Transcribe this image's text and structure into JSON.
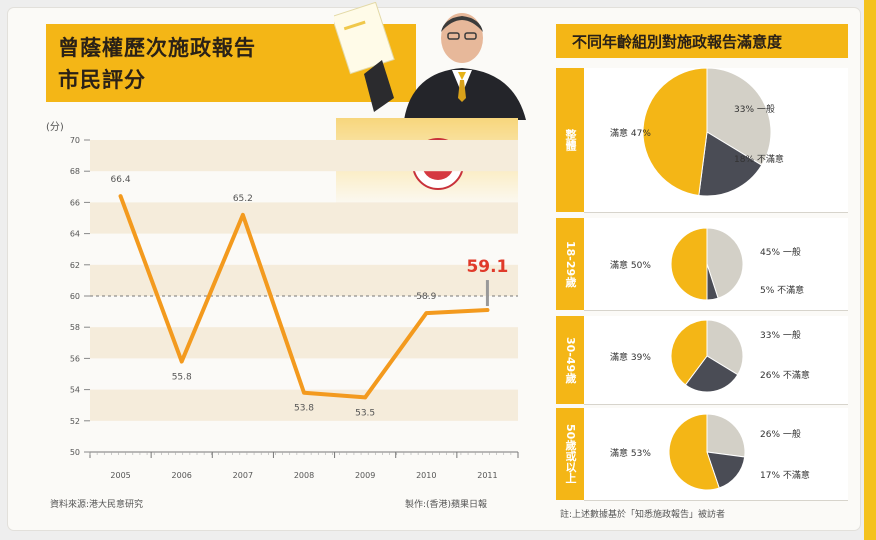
{
  "left_title": {
    "line1": "曾蔭權歷次施政報告",
    "line2": "市民評分"
  },
  "unit_label": "(分)",
  "source_text": "資料來源:港大民意研究",
  "credit_text": "製作:(香港)蘋果日報",
  "chart_data": [
    {
      "type": "line",
      "title": "曾蔭權歷次施政報告市民評分",
      "ylabel": "分",
      "xlabel": "",
      "ylim": [
        50,
        70
      ],
      "yticks": [
        50,
        52,
        54,
        56,
        58,
        60,
        62,
        64,
        66,
        68,
        70
      ],
      "grid": true,
      "reference_line": 60,
      "x": [
        "2005",
        "2006",
        "2007",
        "2008",
        "2009",
        "2010",
        "2011"
      ],
      "series": [
        {
          "values": [
            66.4,
            55.8,
            65.2,
            53.8,
            53.5,
            58.9,
            59.1
          ]
        }
      ],
      "highlight_label": "59.1",
      "colors": {
        "line": "#f39a1e",
        "highlight": "#e03a2a"
      }
    },
    {
      "type": "pie",
      "title": "不同年齡組別對施政報告滿意度",
      "groups": [
        {
          "label": "整體",
          "slices": [
            {
              "name": "滿意",
              "value": 47
            },
            {
              "name": "一般",
              "value": 33
            },
            {
              "name": "不滿意",
              "value": 18
            }
          ]
        },
        {
          "label": "18-29歲",
          "slices": [
            {
              "name": "滿意",
              "value": 50
            },
            {
              "name": "一般",
              "value": 45
            },
            {
              "name": "不滿意",
              "value": 5
            }
          ]
        },
        {
          "label": "30-49歲",
          "slices": [
            {
              "name": "滿意",
              "value": 39
            },
            {
              "name": "一般",
              "value": 33
            },
            {
              "name": "不滿意",
              "value": 26
            }
          ]
        },
        {
          "label": "50歲或以上",
          "slices": [
            {
              "name": "滿意",
              "value": 53
            },
            {
              "name": "一般",
              "value": 26
            },
            {
              "name": "不滿意",
              "value": 17
            }
          ]
        }
      ],
      "colors": {
        "滿意": "#f4b616",
        "一般": "#d3d0c7",
        "不滿意": "#4a4c55"
      }
    }
  ],
  "right_title": "不同年齡組別對施政報告滿意度",
  "right_footnote": "註:上述數據基於「知悉施政報告」被訪者"
}
